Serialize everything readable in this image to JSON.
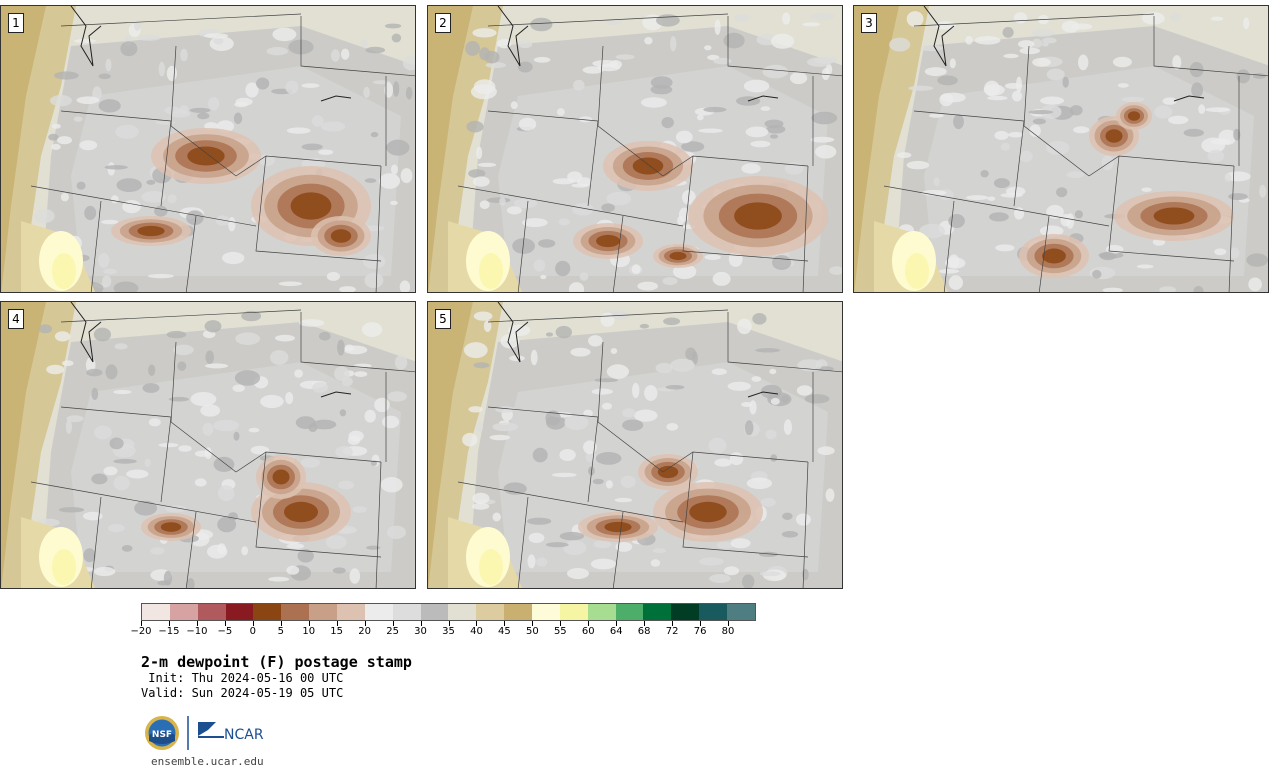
{
  "panels": [
    {
      "label": "1"
    },
    {
      "label": "2"
    },
    {
      "label": "3"
    },
    {
      "label": "4"
    },
    {
      "label": "5"
    }
  ],
  "colorbar": {
    "colors": [
      "#f2e6e3",
      "#d7a3a2",
      "#b05a5e",
      "#8a1a22",
      "#8b4513",
      "#ab7150",
      "#c8a088",
      "#ddc2b2",
      "#ececec",
      "#dddddd",
      "#bbbbbb",
      "#e2e0d2",
      "#ddcca0",
      "#c9b070",
      "#fefbd8",
      "#f6f5a4",
      "#a6dd90",
      "#4cae68",
      "#00703a",
      "#003d24",
      "#195a5e",
      "#4f7e82"
    ],
    "tick_labels": [
      "−20",
      "−15",
      "−10",
      "−5",
      "0",
      "5",
      "10",
      "15",
      "20",
      "25",
      "30",
      "35",
      "40",
      "45",
      "50",
      "55",
      "60",
      "64",
      "68",
      "72",
      "76",
      "80"
    ]
  },
  "title": "2-m dewpoint (F) postage stamp",
  "init": " Init: Thu 2024-05-16 00 UTC",
  "valid": "Valid: Sun 2024-05-19 05 UTC",
  "logos": {
    "left": "NSF",
    "right": "NCAR"
  },
  "url": "ensemble.ucar.edu"
}
